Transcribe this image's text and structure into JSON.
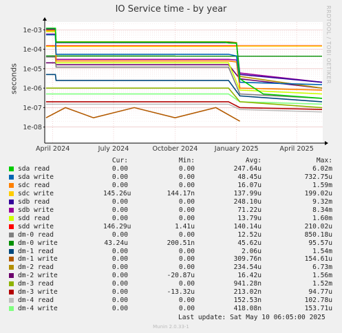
{
  "page": {
    "title": "IO Service time - by year",
    "watermark": "RRDTOOL / TOBI OETIKER",
    "version": "Munin 2.0.33-1",
    "last_update_label": "Last update:",
    "last_update": "Sat May 10 06:05:00 2025"
  },
  "table_headers": {
    "cur": "Cur:",
    "min": "Min:",
    "avg": "Avg:",
    "max": "Max:"
  },
  "chart_data": {
    "type": "line",
    "title": "IO Service time - by year",
    "ylabel": "seconds",
    "y_scale": "log",
    "ylim": [
      1.5e-09,
      0.0025
    ],
    "y_ticks": [
      {
        "value": 0.001,
        "label": "1e-03"
      },
      {
        "value": 0.0001,
        "label": "1e-04"
      },
      {
        "value": 1e-05,
        "label": "1e-05"
      },
      {
        "value": 1e-06,
        "label": "1e-06"
      },
      {
        "value": 1e-07,
        "label": "1e-07"
      },
      {
        "value": 1e-08,
        "label": "1e-08"
      }
    ],
    "xlim": [
      "2024-03-20",
      "2025-05-10"
    ],
    "x_ticks": [
      {
        "value": "2024-04-01",
        "label": "April 2024"
      },
      {
        "value": "2024-07-01",
        "label": "July 2024"
      },
      {
        "value": "2024-10-01",
        "label": "October 2024"
      },
      {
        "value": "2025-01-01",
        "label": "January 2025"
      },
      {
        "value": "2025-04-01",
        "label": "April 2025"
      }
    ],
    "grid": true,
    "series": [
      {
        "name": "sda read",
        "color": "#00cc00",
        "cur": "0.00",
        "min": "0.00",
        "avg": "247.64u",
        "max": "6.02m",
        "points": [
          [
            "2024-03-22",
            0.0012
          ],
          [
            "2024-04-05",
            0.0012
          ],
          [
            "2024-04-06",
            0.00023
          ],
          [
            "2024-12-15",
            0.00023
          ],
          [
            "2024-12-20",
            0.00021
          ],
          [
            "2025-01-01",
            0.0002
          ],
          [
            "2025-01-06",
            3e-06
          ],
          [
            "2025-02-10",
            5e-07
          ],
          [
            "2025-05-09",
            3e-07
          ]
        ]
      },
      {
        "name": "sda write",
        "color": "#0066b3",
        "cur": "0.00",
        "min": "0.00",
        "avg": "48.45u",
        "max": "732.75u",
        "points": [
          [
            "2024-03-22",
            0.00055
          ],
          [
            "2024-04-05",
            0.00055
          ],
          [
            "2024-04-06",
            5.5e-05
          ],
          [
            "2024-12-20",
            5.5e-05
          ],
          [
            "2025-01-01",
            4.5e-05
          ],
          [
            "2025-01-06",
            2e-06
          ],
          [
            "2025-05-09",
            1.5e-06
          ]
        ]
      },
      {
        "name": "sdc read",
        "color": "#ff8000",
        "cur": "0.00",
        "min": "0.00",
        "avg": "16.07u",
        "max": "1.59m",
        "points": [
          [
            "2024-03-22",
            0.0009
          ],
          [
            "2024-04-05",
            0.0009
          ],
          [
            "2024-04-06",
            2.5e-05
          ],
          [
            "2024-12-20",
            2.5e-05
          ],
          [
            "2025-01-01",
            2.2e-05
          ],
          [
            "2025-01-06",
            1e-06
          ],
          [
            "2025-05-09",
            8e-07
          ]
        ]
      },
      {
        "name": "sdc write",
        "color": "#ffcc00",
        "cur": "145.26u",
        "min": "144.17n",
        "avg": "137.99u",
        "max": "199.02u",
        "points": [
          [
            "2024-03-22",
            0.00014
          ],
          [
            "2024-12-30",
            0.00014
          ],
          [
            "2025-01-05",
            0.000145
          ],
          [
            "2025-05-09",
            0.000145
          ]
        ]
      },
      {
        "name": "sdb read",
        "color": "#330099",
        "cur": "0.00",
        "min": "0.00",
        "avg": "248.10u",
        "max": "9.32m",
        "points": [
          [
            "2024-03-22",
            0.0011
          ],
          [
            "2024-04-05",
            0.0011
          ],
          [
            "2024-04-06",
            0.00022
          ],
          [
            "2024-12-20",
            0.00022
          ],
          [
            "2025-01-01",
            0.0002
          ],
          [
            "2025-01-06",
            5e-06
          ],
          [
            "2025-05-09",
            2e-06
          ]
        ]
      },
      {
        "name": "sdb write",
        "color": "#990099",
        "cur": "0.00",
        "min": "0.00",
        "avg": "71.22u",
        "max": "8.34m",
        "points": [
          [
            "2024-03-22",
            0.0006
          ],
          [
            "2024-04-05",
            0.0006
          ],
          [
            "2024-04-06",
            3e-05
          ],
          [
            "2024-12-20",
            3e-05
          ],
          [
            "2025-01-01",
            2.8e-05
          ],
          [
            "2025-01-06",
            6e-06
          ],
          [
            "2025-05-09",
            2e-06
          ]
        ]
      },
      {
        "name": "sdd read",
        "color": "#ccff00",
        "cur": "0.00",
        "min": "0.00",
        "avg": "13.79u",
        "max": "1.60m",
        "points": [
          [
            "2024-03-22",
            0.0008
          ],
          [
            "2024-04-05",
            0.0008
          ],
          [
            "2024-04-06",
            2e-05
          ],
          [
            "2024-12-20",
            2e-05
          ],
          [
            "2025-01-06",
            8e-07
          ],
          [
            "2025-05-09",
            5e-07
          ]
        ]
      },
      {
        "name": "sdd write",
        "color": "#ff0000",
        "cur": "146.29u",
        "min": "1.41u",
        "avg": "140.14u",
        "max": "210.02u",
        "points": [
          [
            "2024-03-22",
            0.00015
          ],
          [
            "2025-05-09",
            0.00015
          ]
        ]
      },
      {
        "name": "dm-0 read",
        "color": "#808080",
        "cur": "0.00",
        "min": "0.00",
        "avg": "12.52u",
        "max": "850.18u",
        "points": [
          [
            "2024-03-22",
            4e-05
          ],
          [
            "2024-04-05",
            4e-05
          ],
          [
            "2024-04-06",
            1.2e-05
          ],
          [
            "2024-12-20",
            1.2e-05
          ],
          [
            "2025-01-06",
            5e-07
          ],
          [
            "2025-05-09",
            3e-07
          ]
        ]
      },
      {
        "name": "dm-0 write",
        "color": "#008f00",
        "cur": "43.24u",
        "min": "200.51n",
        "avg": "45.62u",
        "max": "95.57u",
        "points": [
          [
            "2024-03-22",
            4.5e-05
          ],
          [
            "2025-05-09",
            4.4e-05
          ]
        ]
      },
      {
        "name": "dm-1 read",
        "color": "#00487d",
        "cur": "0.00",
        "min": "0.00",
        "avg": "2.06u",
        "max": "1.54m",
        "points": [
          [
            "2024-03-22",
            5e-06
          ],
          [
            "2024-04-05",
            5e-06
          ],
          [
            "2024-04-06",
            2.5e-06
          ],
          [
            "2024-12-20",
            2.5e-06
          ],
          [
            "2025-01-06",
            4e-07
          ],
          [
            "2025-05-09",
            2e-07
          ]
        ]
      },
      {
        "name": "dm-1 write",
        "color": "#b35a00",
        "cur": "0.00",
        "min": "0.00",
        "avg": "309.76n",
        "max": "154.61u",
        "points": [
          [
            "2024-03-22",
            3e-08
          ],
          [
            "2024-04-20",
            1e-07
          ],
          [
            "2024-06-01",
            3e-08
          ],
          [
            "2024-08-01",
            1e-07
          ],
          [
            "2024-10-01",
            3e-08
          ],
          [
            "2024-12-01",
            1e-07
          ],
          [
            "2025-01-06",
            2e-08
          ]
        ]
      },
      {
        "name": "dm-2 read",
        "color": "#b38f00",
        "cur": "0.00",
        "min": "0.00",
        "avg": "234.54u",
        "max": "6.73m",
        "points": [
          [
            "2024-03-22",
            0.001
          ],
          [
            "2024-04-05",
            0.001
          ],
          [
            "2024-04-06",
            0.00024
          ],
          [
            "2024-12-20",
            0.00024
          ],
          [
            "2025-01-01",
            0.00022
          ],
          [
            "2025-01-06",
            4e-06
          ],
          [
            "2025-05-09",
            1e-06
          ]
        ]
      },
      {
        "name": "dm-2 write",
        "color": "#6b006b",
        "cur": "0.00",
        "min": "-20.87u",
        "avg": "16.42u",
        "max": "1.56m",
        "points": [
          [
            "2024-03-22",
            2e-05
          ],
          [
            "2024-04-05",
            2e-05
          ],
          [
            "2024-04-06",
            1.6e-05
          ],
          [
            "2024-12-20",
            1.6e-05
          ],
          [
            "2025-01-06",
            3e-06
          ],
          [
            "2025-05-09",
            1e-06
          ]
        ]
      },
      {
        "name": "dm-3 read",
        "color": "#8fb300",
        "cur": "0.00",
        "min": "0.00",
        "avg": "941.28n",
        "max": "1.52m",
        "points": [
          [
            "2024-03-22",
            1e-06
          ],
          [
            "2024-12-20",
            1e-06
          ],
          [
            "2025-01-06",
            2e-07
          ],
          [
            "2025-05-09",
            1e-07
          ]
        ]
      },
      {
        "name": "dm-3 write",
        "color": "#b30000",
        "cur": "0.00",
        "min": "-13.32u",
        "avg": "213.02n",
        "max": "94.77u",
        "points": [
          [
            "2024-03-22",
            2e-07
          ],
          [
            "2024-12-20",
            2e-07
          ],
          [
            "2025-01-06",
            1e-07
          ],
          [
            "2025-05-09",
            8e-08
          ]
        ]
      },
      {
        "name": "dm-4 read",
        "color": "#bebebe",
        "cur": "0.00",
        "min": "0.00",
        "avg": "152.53n",
        "max": "102.78u",
        "points": [
          [
            "2024-03-22",
            1.5e-07
          ],
          [
            "2024-12-20",
            1.5e-07
          ],
          [
            "2025-01-06",
            8e-08
          ],
          [
            "2025-05-09",
            6e-08
          ]
        ]
      },
      {
        "name": "dm-4 write",
        "color": "#80ff80",
        "cur": "0.00",
        "min": "0.00",
        "avg": "418.08n",
        "max": "153.71u",
        "points": [
          [
            "2024-03-22",
            5e-07
          ],
          [
            "2024-12-20",
            5e-07
          ],
          [
            "2025-01-06",
            2e-07
          ],
          [
            "2025-05-09",
            1.5e-07
          ]
        ]
      }
    ]
  }
}
